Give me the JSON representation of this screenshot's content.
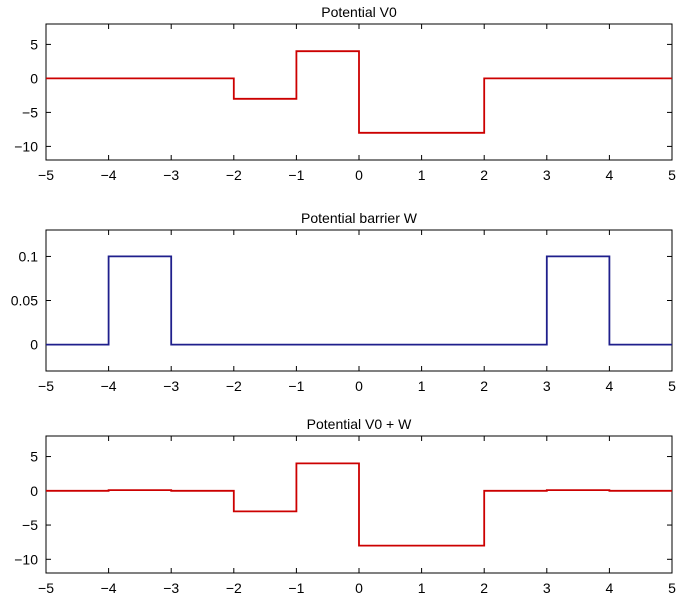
{
  "chart_data": [
    {
      "type": "line",
      "title": "Potential V0",
      "xlabel": "",
      "ylabel": "",
      "xlim": [
        -5,
        5
      ],
      "ylim": [
        -12,
        8
      ],
      "xticks": [
        -5,
        -4,
        -3,
        -2,
        -1,
        0,
        1,
        2,
        3,
        4,
        5
      ],
      "xtick_labels": [
        "−5",
        "−4",
        "−3",
        "−2",
        "−1",
        "0",
        "1",
        "2",
        "3",
        "4",
        "5"
      ],
      "yticks": [
        -10,
        -5,
        0,
        5
      ],
      "ytick_labels": [
        "−10",
        "−5",
        "0",
        "5"
      ],
      "grid": false,
      "series": [
        {
          "color": "#cc0000",
          "x": [
            -5,
            -2,
            -2,
            -1,
            -1,
            0,
            0,
            2,
            2,
            5
          ],
          "y": [
            0,
            0,
            -3,
            -3,
            4,
            4,
            -8,
            -8,
            0,
            0
          ]
        }
      ]
    },
    {
      "type": "line",
      "title": "Potential barrier W",
      "xlabel": "",
      "ylabel": "",
      "xlim": [
        -5,
        5
      ],
      "ylim": [
        -0.03,
        0.13
      ],
      "xticks": [
        -5,
        -4,
        -3,
        -2,
        -1,
        0,
        1,
        2,
        3,
        4,
        5
      ],
      "xtick_labels": [
        "−5",
        "−4",
        "−3",
        "−2",
        "−1",
        "0",
        "1",
        "2",
        "3",
        "4",
        "5"
      ],
      "yticks": [
        0,
        0.05,
        0.1
      ],
      "ytick_labels": [
        "0",
        "0.05",
        "0.1"
      ],
      "grid": false,
      "series": [
        {
          "color": "#1f1f8c",
          "x": [
            -5,
            -4,
            -4,
            -3,
            -3,
            3,
            3,
            4,
            4,
            5
          ],
          "y": [
            0,
            0,
            0.1,
            0.1,
            0,
            0,
            0.1,
            0.1,
            0,
            0
          ]
        }
      ]
    },
    {
      "type": "line",
      "title": "Potential V0 + W",
      "xlabel": "",
      "ylabel": "",
      "xlim": [
        -5,
        5
      ],
      "ylim": [
        -12,
        8
      ],
      "xticks": [
        -5,
        -4,
        -3,
        -2,
        -1,
        0,
        1,
        2,
        3,
        4,
        5
      ],
      "xtick_labels": [
        "−5",
        "−4",
        "−3",
        "−2",
        "−1",
        "0",
        "1",
        "2",
        "3",
        "4",
        "5"
      ],
      "yticks": [
        -10,
        -5,
        0,
        5
      ],
      "ytick_labels": [
        "−10",
        "−5",
        "0",
        "5"
      ],
      "grid": false,
      "series": [
        {
          "color": "#cc0000",
          "x": [
            -5,
            -4,
            -4,
            -3,
            -3,
            -2,
            -2,
            -1,
            -1,
            0,
            0,
            2,
            2,
            3,
            3,
            4,
            4,
            5
          ],
          "y": [
            0,
            0,
            0.1,
            0.1,
            0,
            0,
            -3,
            -3,
            4,
            4,
            -8,
            -8,
            0,
            0,
            0.1,
            0.1,
            0,
            0
          ]
        }
      ]
    }
  ]
}
